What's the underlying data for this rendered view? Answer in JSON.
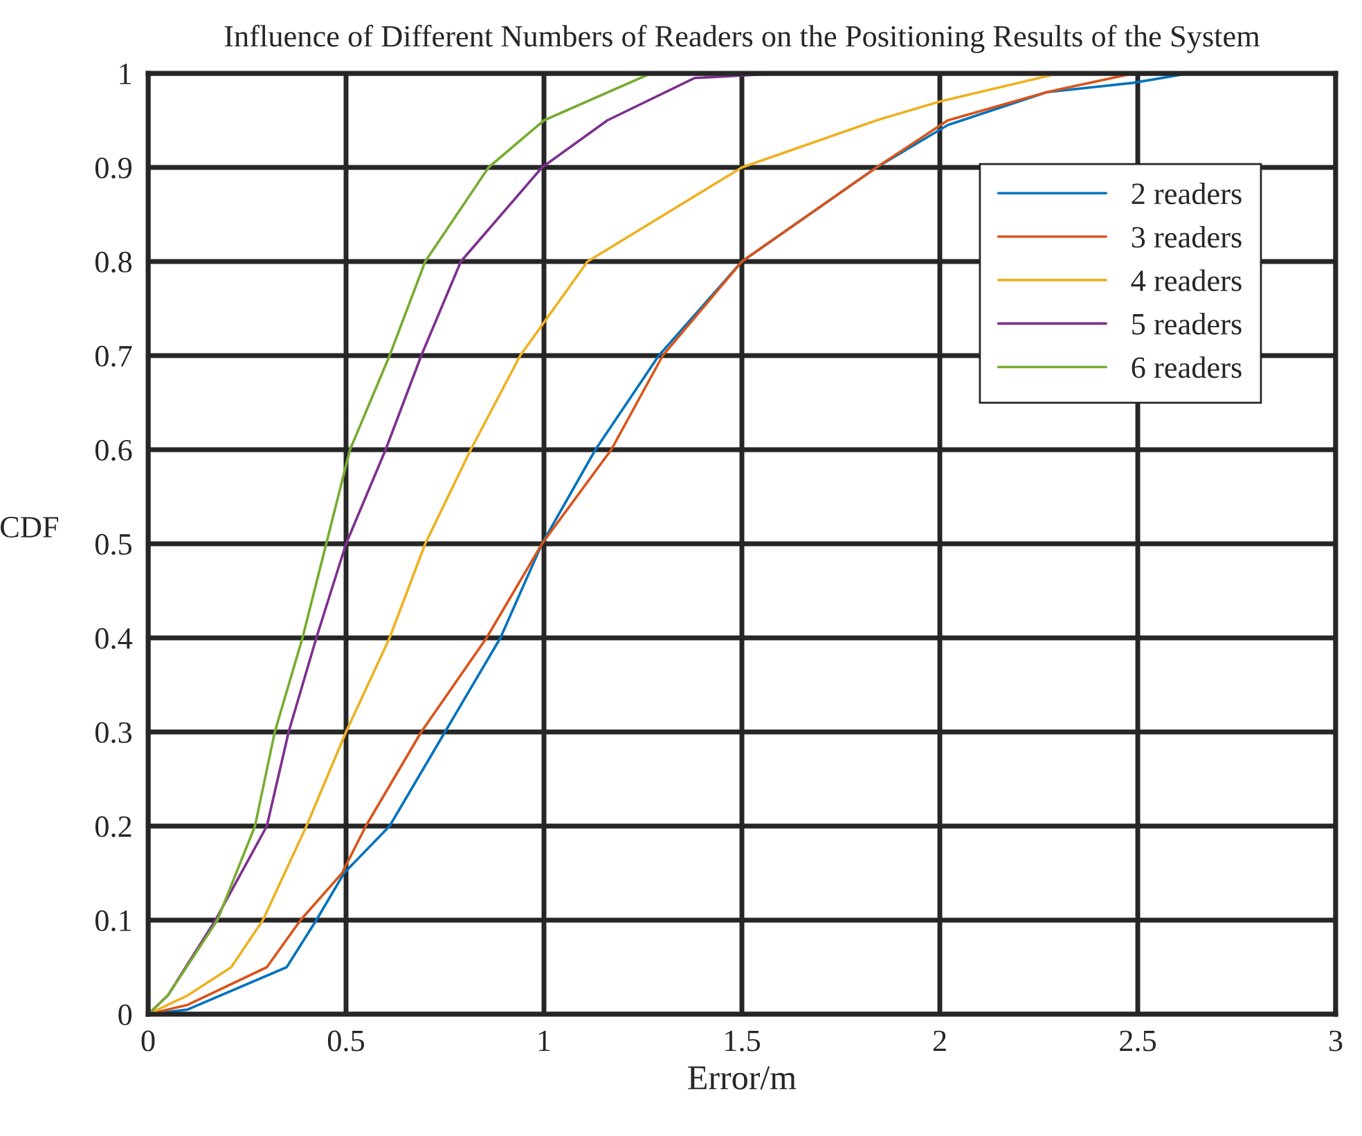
{
  "chart_data": {
    "type": "line",
    "title": "Influence of Different Numbers of Readers on the Positioning Results of the System",
    "xlabel": "Error/m",
    "ylabel": "CDF",
    "xlim": [
      0,
      3
    ],
    "xticks": [
      0,
      0.5,
      1,
      1.5,
      2,
      2.5,
      3
    ],
    "ylim": [
      0,
      1
    ],
    "yticks": [
      0,
      0.1,
      0.2,
      0.3,
      0.4,
      0.5,
      0.6,
      0.7,
      0.8,
      0.9,
      1
    ],
    "grid": true,
    "legend": "top right",
    "line_style": "solid",
    "marker": "none",
    "series": [
      {
        "name": "2 readers",
        "color": "#0072bd",
        "x": [
          0,
          0.1,
          0.35,
          0.425,
          0.495,
          0.61,
          0.75,
          0.89,
          0.995,
          1.13,
          1.29,
          1.5,
          1.84,
          2.02,
          2.27,
          2.49,
          2.63,
          3
        ],
        "values": [
          0,
          0.005,
          0.05,
          0.1,
          0.15,
          0.2,
          0.3,
          0.4,
          0.5,
          0.6,
          0.7,
          0.8,
          0.9,
          0.945,
          0.98,
          0.99,
          1,
          1
        ]
      },
      {
        "name": "3 readers",
        "color": "#d95319",
        "x": [
          0,
          0.1,
          0.3,
          0.385,
          0.49,
          0.55,
          0.69,
          0.855,
          0.995,
          1.17,
          1.3,
          1.5,
          1.84,
          2.02,
          2.27,
          2.49
        ],
        "values": [
          0,
          0.01,
          0.05,
          0.1,
          0.15,
          0.2,
          0.3,
          0.4,
          0.5,
          0.6,
          0.7,
          0.8,
          0.9,
          0.95,
          0.98,
          1
        ]
      },
      {
        "name": "4 readers",
        "color": "#edb120",
        "x": [
          0,
          0.1,
          0.21,
          0.29,
          0.4,
          0.5,
          0.61,
          0.7,
          0.815,
          0.94,
          1.11,
          1.5,
          1.84,
          2.0,
          2.3
        ],
        "values": [
          0,
          0.02,
          0.05,
          0.1,
          0.2,
          0.3,
          0.4,
          0.5,
          0.6,
          0.7,
          0.8,
          0.9,
          0.95,
          0.97,
          1
        ]
      },
      {
        "name": "5 readers",
        "color": "#7e2f8e",
        "x": [
          0,
          0.05,
          0.17,
          0.3,
          0.355,
          0.425,
          0.5,
          0.6,
          0.69,
          0.79,
          0.995,
          1.16,
          1.38,
          1.6
        ],
        "values": [
          0,
          0.02,
          0.1,
          0.2,
          0.3,
          0.4,
          0.5,
          0.6,
          0.7,
          0.8,
          0.9,
          0.95,
          0.995,
          1
        ]
      },
      {
        "name": "6 readers",
        "color": "#77ac30",
        "x": [
          0,
          0.05,
          0.175,
          0.27,
          0.32,
          0.39,
          0.45,
          0.51,
          0.61,
          0.7,
          0.86,
          1.0,
          1.27
        ],
        "values": [
          0,
          0.02,
          0.1,
          0.2,
          0.3,
          0.4,
          0.5,
          0.6,
          0.7,
          0.8,
          0.9,
          0.95,
          1
        ]
      }
    ]
  }
}
